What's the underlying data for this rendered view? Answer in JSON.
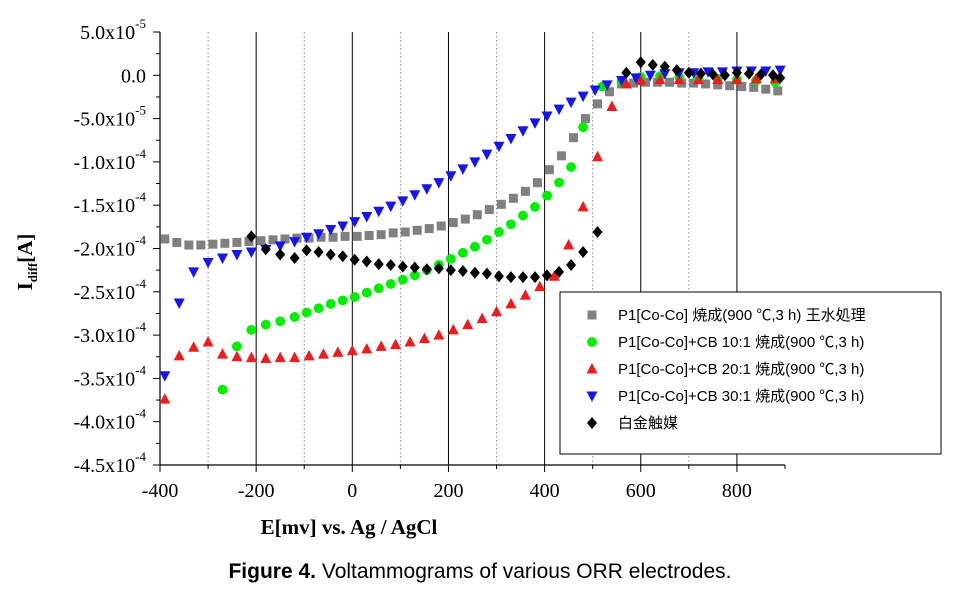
{
  "chart_data": {
    "type": "scatter",
    "title": "",
    "xlabel": "E[mv] vs. Ag / AgCl",
    "ylabel": {
      "main": "I",
      "sub": "diff",
      "tail": "[A]"
    },
    "xlim": [
      -400,
      900
    ],
    "ylim": [
      -0.00045,
      5e-05
    ],
    "x_ticks": [
      {
        "value": -400,
        "label": "-400"
      },
      {
        "value": -200,
        "label": "-200"
      },
      {
        "value": 0,
        "label": "0"
      },
      {
        "value": 200,
        "label": "200"
      },
      {
        "value": 400,
        "label": "400"
      },
      {
        "value": 600,
        "label": "600"
      },
      {
        "value": 800,
        "label": "800"
      }
    ],
    "y_ticks": [
      {
        "value": 5e-05,
        "mant": "5.0x10",
        "exp": "-5"
      },
      {
        "value": 0,
        "mant": "0.0",
        "exp": ""
      },
      {
        "value": -5e-05,
        "mant": "-5.0x10",
        "exp": "-5"
      },
      {
        "value": -0.0001,
        "mant": "-1.0x10",
        "exp": "-4"
      },
      {
        "value": -0.00015,
        "mant": "-1.5x10",
        "exp": "-4"
      },
      {
        "value": -0.0002,
        "mant": "-2.0x10",
        "exp": "-4"
      },
      {
        "value": -0.00025,
        "mant": "-2.5x10",
        "exp": "-4"
      },
      {
        "value": -0.0003,
        "mant": "-3.0x10",
        "exp": "-4"
      },
      {
        "value": -0.00035,
        "mant": "-3.5x10",
        "exp": "-4"
      },
      {
        "value": -0.0004,
        "mant": "-4.0x10",
        "exp": "-4"
      },
      {
        "value": -0.00045,
        "mant": "-4.5x10",
        "exp": "-4"
      }
    ],
    "solid_gridlines_x": [
      -200,
      0,
      200,
      400,
      600,
      800
    ],
    "dotted_gridlines_x": [
      -300,
      -100,
      100,
      300,
      500,
      700
    ],
    "legend_position": "lower-right",
    "series": [
      {
        "name": "P1[Co-Co] 焼成(900 ℃,3 h) 王水処理",
        "color": "#808080",
        "marker": "square",
        "points": [
          [
            -390,
            -0.000189
          ],
          [
            -365,
            -0.000193
          ],
          [
            -340,
            -0.000196
          ],
          [
            -315,
            -0.000196
          ],
          [
            -290,
            -0.000195
          ],
          [
            -265,
            -0.000194
          ],
          [
            -240,
            -0.000193
          ],
          [
            -215,
            -0.000192
          ],
          [
            -190,
            -0.000191
          ],
          [
            -165,
            -0.00019
          ],
          [
            -140,
            -0.000189
          ],
          [
            -115,
            -0.000188
          ],
          [
            -90,
            -0.000188
          ],
          [
            -65,
            -0.000187
          ],
          [
            -40,
            -0.000187
          ],
          [
            -15,
            -0.000186
          ],
          [
            10,
            -0.000186
          ],
          [
            35,
            -0.000185
          ],
          [
            60,
            -0.000184
          ],
          [
            85,
            -0.000182
          ],
          [
            110,
            -0.000181
          ],
          [
            135,
            -0.000179
          ],
          [
            160,
            -0.000177
          ],
          [
            185,
            -0.000174
          ],
          [
            210,
            -0.00017
          ],
          [
            235,
            -0.000166
          ],
          [
            260,
            -0.000161
          ],
          [
            285,
            -0.000155
          ],
          [
            310,
            -0.000149
          ],
          [
            335,
            -0.000142
          ],
          [
            360,
            -0.000134
          ],
          [
            385,
            -0.000124
          ],
          [
            410,
            -0.000109
          ],
          [
            435,
            -9.3e-05
          ],
          [
            460,
            -7.2e-05
          ],
          [
            485,
            -5e-05
          ],
          [
            510,
            -3.3e-05
          ],
          [
            535,
            -1.9e-05
          ],
          [
            560,
            -1e-05
          ],
          [
            585,
            -9e-06
          ],
          [
            610,
            -8e-06
          ],
          [
            635,
            -8e-06
          ],
          [
            660,
            -8e-06
          ],
          [
            685,
            -9e-06
          ],
          [
            710,
            -9e-06
          ],
          [
            735,
            -1e-05
          ],
          [
            760,
            -1.1e-05
          ],
          [
            785,
            -1.2e-05
          ],
          [
            810,
            -1.3e-05
          ],
          [
            835,
            -1.4e-05
          ],
          [
            860,
            -1.6e-05
          ],
          [
            885,
            -1.8e-05
          ]
        ]
      },
      {
        "name": "P1[Co-Co]+CB 10:1 焼成(900 ℃,3 h)",
        "color": "#00ee00",
        "marker": "circle",
        "points": [
          [
            -270,
            -0.000363
          ],
          [
            -240,
            -0.000313
          ],
          [
            -210,
            -0.000294
          ],
          [
            -180,
            -0.000288
          ],
          [
            -150,
            -0.000284
          ],
          [
            -120,
            -0.000279
          ],
          [
            -95,
            -0.000274
          ],
          [
            -70,
            -0.000269
          ],
          [
            -45,
            -0.000264
          ],
          [
            -20,
            -0.00026
          ],
          [
            5,
            -0.000256
          ],
          [
            30,
            -0.000251
          ],
          [
            55,
            -0.000246
          ],
          [
            80,
            -0.000241
          ],
          [
            105,
            -0.000236
          ],
          [
            130,
            -0.000231
          ],
          [
            155,
            -0.000225
          ],
          [
            180,
            -0.000219
          ],
          [
            205,
            -0.000212
          ],
          [
            230,
            -0.000205
          ],
          [
            255,
            -0.000198
          ],
          [
            280,
            -0.00019
          ],
          [
            305,
            -0.000181
          ],
          [
            330,
            -0.000172
          ],
          [
            355,
            -0.000162
          ],
          [
            380,
            -0.000152
          ],
          [
            405,
            -0.000139
          ],
          [
            430,
            -0.000124
          ],
          [
            455,
            -0.000106
          ],
          [
            480,
            -6e-05
          ],
          [
            520,
            -1.3e-05
          ],
          [
            560,
            -7e-06
          ],
          [
            600,
            -2e-06
          ],
          [
            640,
            -1e-06
          ],
          [
            680,
            -2e-06
          ],
          [
            720,
            -3e-06
          ],
          [
            760,
            -4e-06
          ],
          [
            800,
            -5e-06
          ],
          [
            840,
            -6e-06
          ],
          [
            880,
            -8e-06
          ]
        ]
      },
      {
        "name": "P1[Co-Co]+CB 20:1 焼成(900 ℃,3 h)",
        "color": "#ee1c1c",
        "marker": "triangle-up",
        "points": [
          [
            -390,
            -0.000374
          ],
          [
            -360,
            -0.000324
          ],
          [
            -330,
            -0.000314
          ],
          [
            -300,
            -0.000308
          ],
          [
            -270,
            -0.000322
          ],
          [
            -240,
            -0.000325
          ],
          [
            -210,
            -0.000326
          ],
          [
            -180,
            -0.000327
          ],
          [
            -150,
            -0.000326
          ],
          [
            -120,
            -0.000326
          ],
          [
            -90,
            -0.000324
          ],
          [
            -60,
            -0.000322
          ],
          [
            -30,
            -0.00032
          ],
          [
            0,
            -0.000318
          ],
          [
            30,
            -0.000316
          ],
          [
            60,
            -0.000313
          ],
          [
            90,
            -0.000311
          ],
          [
            120,
            -0.000308
          ],
          [
            150,
            -0.000304
          ],
          [
            180,
            -0.0003
          ],
          [
            210,
            -0.000294
          ],
          [
            240,
            -0.000288
          ],
          [
            270,
            -0.000281
          ],
          [
            300,
            -0.000273
          ],
          [
            330,
            -0.000264
          ],
          [
            360,
            -0.000254
          ],
          [
            390,
            -0.000244
          ],
          [
            420,
            -0.000232
          ],
          [
            450,
            -0.000196
          ],
          [
            480,
            -0.000152
          ],
          [
            510,
            -9.4e-05
          ],
          [
            540,
            -3.6e-05
          ],
          [
            570,
            -1e-05
          ],
          [
            600,
            -6e-06
          ],
          [
            640,
            -5e-06
          ],
          [
            680,
            -5e-06
          ],
          [
            720,
            -5e-06
          ],
          [
            760,
            -5e-06
          ],
          [
            800,
            -5e-06
          ],
          [
            840,
            -4e-06
          ],
          [
            880,
            -4e-06
          ]
        ]
      },
      {
        "name": "P1[Co-Co]+CB 30:1 焼成(900 ℃,3 h)",
        "color": "#1515ee",
        "marker": "triangle-down",
        "points": [
          [
            -390,
            -0.000347
          ],
          [
            -360,
            -0.000263
          ],
          [
            -330,
            -0.000227
          ],
          [
            -300,
            -0.000216
          ],
          [
            -270,
            -0.000211
          ],
          [
            -240,
            -0.000207
          ],
          [
            -210,
            -0.000204
          ],
          [
            -180,
            -0.000201
          ],
          [
            -150,
            -0.000197
          ],
          [
            -120,
            -0.000192
          ],
          [
            -95,
            -0.000187
          ],
          [
            -70,
            -0.000183
          ],
          [
            -45,
            -0.000178
          ],
          [
            -20,
            -0.000174
          ],
          [
            5,
            -0.000169
          ],
          [
            30,
            -0.000163
          ],
          [
            55,
            -0.000157
          ],
          [
            80,
            -0.000151
          ],
          [
            105,
            -0.000145
          ],
          [
            130,
            -0.000138
          ],
          [
            155,
            -0.000131
          ],
          [
            180,
            -0.000124
          ],
          [
            205,
            -0.000116
          ],
          [
            230,
            -0.000108
          ],
          [
            255,
            -0.0001
          ],
          [
            280,
            -9.1e-05
          ],
          [
            305,
            -8.2e-05
          ],
          [
            330,
            -7.3e-05
          ],
          [
            355,
            -6.4e-05
          ],
          [
            380,
            -5.5e-05
          ],
          [
            405,
            -4.7e-05
          ],
          [
            430,
            -3.9e-05
          ],
          [
            455,
            -3.1e-05
          ],
          [
            480,
            -2.4e-05
          ],
          [
            505,
            -1.7e-05
          ],
          [
            530,
            -1.1e-05
          ],
          [
            560,
            -6e-06
          ],
          [
            590,
            -3e-06
          ],
          [
            620,
            0
          ],
          [
            650,
            2e-06
          ],
          [
            680,
            3e-06
          ],
          [
            710,
            3e-06
          ],
          [
            740,
            4e-06
          ],
          [
            770,
            4e-06
          ],
          [
            800,
            5e-06
          ],
          [
            830,
            5e-06
          ],
          [
            860,
            5e-06
          ],
          [
            890,
            6e-06
          ]
        ]
      },
      {
        "name": "白金触媒",
        "color": "#000000",
        "marker": "diamond",
        "points": [
          [
            -210,
            -0.000186
          ],
          [
            -180,
            -0.000201
          ],
          [
            -150,
            -0.000207
          ],
          [
            -120,
            -0.000211
          ],
          [
            -95,
            -0.000202
          ],
          [
            -70,
            -0.000204
          ],
          [
            -45,
            -0.000207
          ],
          [
            -20,
            -0.000209
          ],
          [
            5,
            -0.000213
          ],
          [
            30,
            -0.000215
          ],
          [
            55,
            -0.000218
          ],
          [
            80,
            -0.000219
          ],
          [
            105,
            -0.000221
          ],
          [
            130,
            -0.000222
          ],
          [
            155,
            -0.000224
          ],
          [
            180,
            -0.000223
          ],
          [
            205,
            -0.000225
          ],
          [
            230,
            -0.000226
          ],
          [
            255,
            -0.000228
          ],
          [
            280,
            -0.000229
          ],
          [
            305,
            -0.000232
          ],
          [
            330,
            -0.000233
          ],
          [
            355,
            -0.000233
          ],
          [
            380,
            -0.000233
          ],
          [
            405,
            -0.000231
          ],
          [
            430,
            -0.000227
          ],
          [
            455,
            -0.000219
          ],
          [
            480,
            -0.000204
          ],
          [
            510,
            -0.000181
          ],
          [
            570,
            3e-06
          ],
          [
            600,
            1.5e-05
          ],
          [
            625,
            1.2e-05
          ],
          [
            650,
            1e-05
          ],
          [
            675,
            6e-06
          ],
          [
            700,
            3e-06
          ],
          [
            725,
            2e-06
          ],
          [
            750,
            1e-06
          ],
          [
            775,
            0
          ],
          [
            800,
            3e-06
          ],
          [
            825,
            2e-06
          ],
          [
            850,
            1e-06
          ],
          [
            875,
            0
          ],
          [
            890,
            -3e-06
          ]
        ]
      }
    ]
  },
  "caption": {
    "label": "Figure 4.",
    "text": " Voltammograms of various ORR electrodes."
  }
}
